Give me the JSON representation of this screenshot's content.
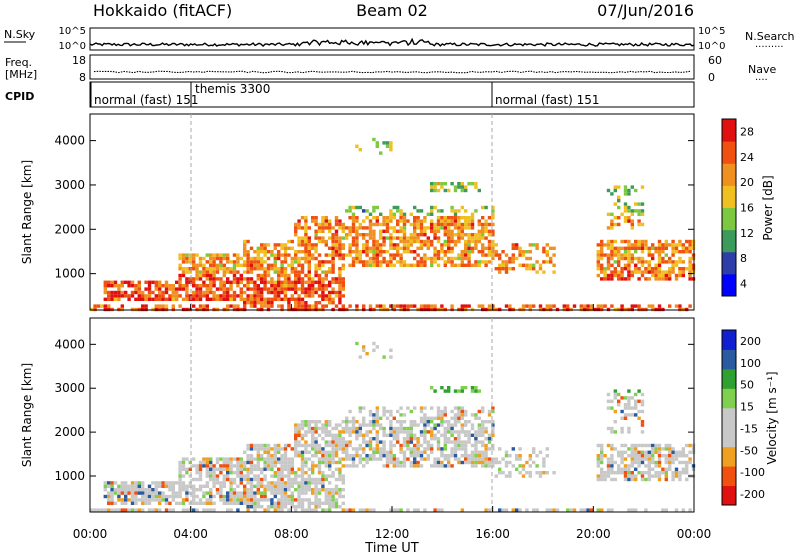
{
  "header": {
    "station": "Hokkaido (fitACF)",
    "beam": "Beam 02",
    "date": "07/Jun/2016"
  },
  "noise_panel": {
    "left_label": "N.Sky",
    "left_ticks": [
      "10^5",
      "10^0"
    ],
    "right_ticks": [
      "10^5",
      "10^0"
    ],
    "right_label": "N.Search",
    "right_dots": "·········"
  },
  "freq_panel": {
    "left_label_1": "Freq.",
    "left_label_2": "[MHz]",
    "left_ticks": [
      "18",
      "8"
    ],
    "right_ticks": [
      "60",
      "0"
    ],
    "right_label": "Nave",
    "right_dots": "····"
  },
  "cpid_panel": {
    "label": "CPID",
    "segments": [
      {
        "text": "normal (fast) 151",
        "start_hour": 0
      },
      {
        "text": "themis 3300",
        "start_hour": 4
      },
      {
        "text": "normal (fast) 151",
        "start_hour": 16
      }
    ]
  },
  "colors": {
    "power_scale": [
      "#0000ff",
      "#2e3ea8",
      "#3c9a5a",
      "#7cc840",
      "#f0c020",
      "#f09020",
      "#f05010",
      "#e01010"
    ],
    "velocity_scale": [
      "#e01010",
      "#f05010",
      "#f0a020",
      "#c8c8c8",
      "#c8c8c8",
      "#80d050",
      "#30a030",
      "#2a5aa0",
      "#1020d0"
    ]
  },
  "chart_data": [
    {
      "type": "heatmap",
      "name": "Power",
      "ylabel": "Slant Range [km]",
      "ylim": [
        180,
        4600
      ],
      "yticks": [
        "1000",
        "2000",
        "3000",
        "4000"
      ],
      "xlim_hours": [
        0,
        24
      ],
      "colorbar_label": "Power [dB]",
      "colorbar_ticks": [
        "28",
        "24",
        "20",
        "16",
        "12",
        "8",
        "4"
      ],
      "colorbar_range": [
        0,
        32
      ]
    },
    {
      "type": "heatmap",
      "name": "Velocity",
      "ylabel": "Slant Range [km]",
      "ylim": [
        180,
        4600
      ],
      "yticks": [
        "1000",
        "2000",
        "3000",
        "4000"
      ],
      "xlim_hours": [
        0,
        24
      ],
      "colorbar_label": "Velocity [m s⁻¹]",
      "colorbar_ticks": [
        "200",
        "100",
        "50",
        "15",
        "-15",
        "-50",
        "-100",
        "-200"
      ]
    }
  ],
  "x_axis": {
    "title": "Time UT",
    "ticks": [
      "00:00",
      "04:00",
      "08:00",
      "12:00",
      "16:00",
      "20:00",
      "00:00"
    ]
  }
}
